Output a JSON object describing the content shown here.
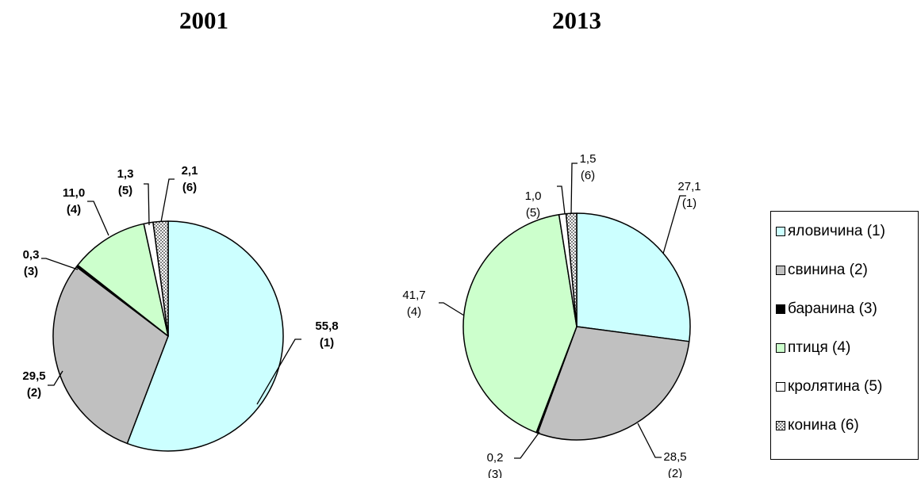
{
  "chart_data": [
    {
      "type": "pie",
      "title": "2001",
      "label_style": "bold",
      "categories": [
        "яловичина (1)",
        "свинина (2)",
        "баранина (3)",
        "птиця (4)",
        "кролятина (5)",
        "конина (6)"
      ],
      "values": [
        55.8,
        29.5,
        0.3,
        11.0,
        1.3,
        2.1
      ],
      "value_labels": [
        "55,8",
        "29,5",
        "0,3",
        "11,0",
        "1,3",
        "2,1"
      ],
      "index_labels": [
        "(1)",
        "(2)",
        "(3)",
        "(4)",
        "(5)",
        "(6)"
      ]
    },
    {
      "type": "pie",
      "title": "2013",
      "label_style": "normal",
      "categories": [
        "яловичина (1)",
        "свинина (2)",
        "баранина (3)",
        "птиця (4)",
        "кролятина (5)",
        "конина (6)"
      ],
      "values": [
        27.1,
        28.5,
        0.2,
        41.7,
        1.0,
        1.5
      ],
      "value_labels": [
        "27,1",
        "28,5",
        "0,2",
        "41,7",
        "1,0",
        "1,5"
      ],
      "index_labels": [
        "(1)",
        "(2)",
        "(3)",
        "(4)",
        "(5)",
        "(6)"
      ]
    }
  ],
  "legend": {
    "placement": "right",
    "items": [
      {
        "label": "яловичина (1)",
        "color": "#ccffff",
        "pattern": "solid"
      },
      {
        "label": "свинина (2)",
        "color": "#c0c0c0",
        "pattern": "solid"
      },
      {
        "label": "баранина (3)",
        "color": "#000000",
        "pattern": "solid"
      },
      {
        "label": "птиця (4)",
        "color": "#ccffcc",
        "pattern": "solid"
      },
      {
        "label": "кролятина (5)",
        "color": "#ffffff",
        "pattern": "solid"
      },
      {
        "label": "конина (6)",
        "color": "#808080",
        "pattern": "checker"
      }
    ]
  }
}
